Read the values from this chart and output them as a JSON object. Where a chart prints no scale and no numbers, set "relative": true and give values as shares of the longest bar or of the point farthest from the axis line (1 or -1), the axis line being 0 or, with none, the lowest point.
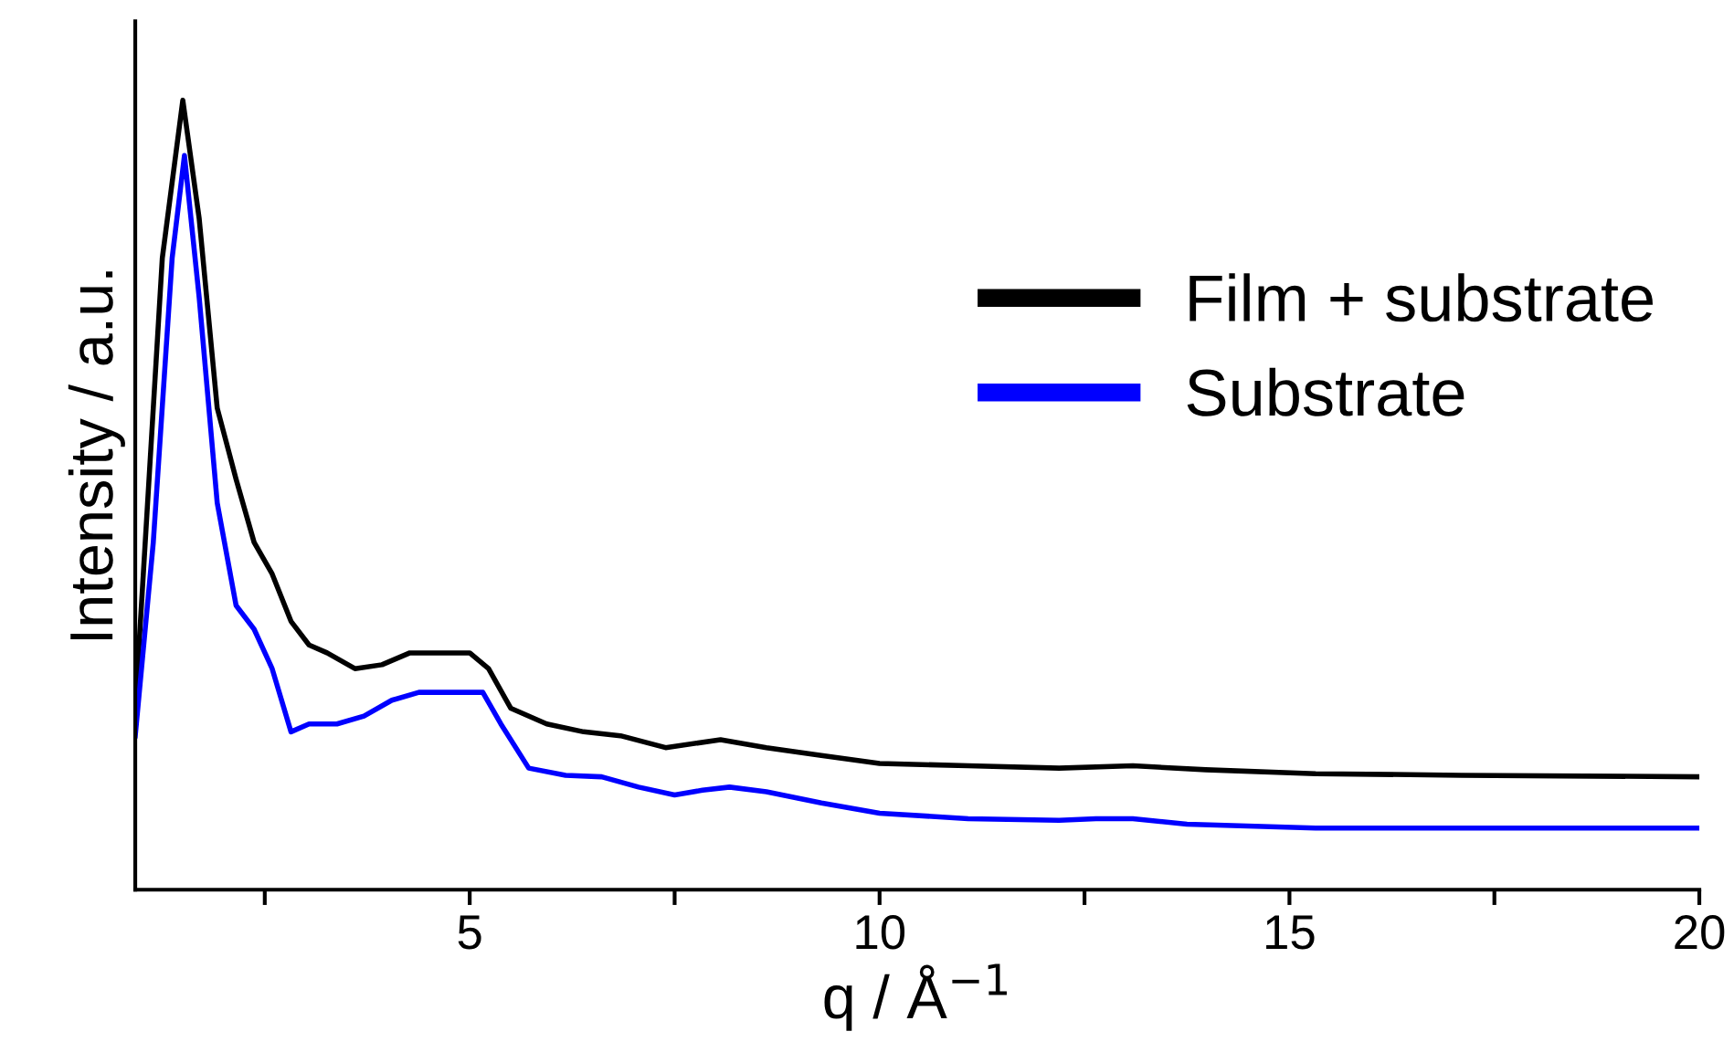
{
  "chart_data": {
    "type": "line",
    "relative": true,
    "xlabel": "q / Å$^{−1}$",
    "ylabel": "Intensity / a.u.",
    "xlim": [
      0.92,
      20
    ],
    "xticks": [
      {
        "value": 2.5,
        "label": null
      },
      5,
      {
        "value": 7.5,
        "label": null
      },
      10,
      {
        "value": 12.5,
        "label": null
      },
      15,
      {
        "value": 17.5,
        "label": null
      },
      20
    ],
    "legend": "right",
    "grid": false,
    "marker": "none",
    "line_style": "solid",
    "series": [
      {
        "name": "Film + substrate",
        "color": "#000000",
        "x": [
          0.92,
          1.25,
          1.5,
          1.7,
          1.92,
          2.15,
          2.37,
          2.59,
          2.82,
          3.04,
          3.26,
          3.6,
          3.93,
          4.27,
          4.6,
          5.0,
          5.23,
          5.5,
          5.94,
          6.39,
          6.84,
          7.39,
          8.06,
          8.62,
          9.29,
          10.0,
          11.08,
          12.19,
          13.09,
          13.98,
          15.32,
          17.1,
          20
        ],
        "values": [
          0.23,
          0.8,
          1.0,
          0.85,
          0.61,
          0.52,
          0.44,
          0.4,
          0.34,
          0.31,
          0.3,
          0.28,
          0.285,
          0.3,
          0.3,
          0.3,
          0.28,
          0.23,
          0.21,
          0.2,
          0.195,
          0.18,
          0.19,
          0.18,
          0.17,
          0.16,
          0.157,
          0.154,
          0.157,
          0.152,
          0.147,
          0.145,
          0.143
        ]
      },
      {
        "name": "Substrate",
        "color": "#0000ff",
        "x": [
          0.92,
          1.14,
          1.37,
          1.52,
          1.7,
          1.92,
          2.15,
          2.37,
          2.59,
          2.82,
          3.04,
          3.38,
          3.71,
          4.05,
          4.38,
          4.71,
          5.16,
          5.38,
          5.72,
          6.17,
          6.61,
          7.06,
          7.5,
          7.84,
          8.17,
          8.62,
          9.29,
          10.0,
          11.08,
          12.19,
          12.64,
          13.09,
          13.75,
          15.32,
          20
        ],
        "values": [
          0.195,
          0.44,
          0.8,
          0.93,
          0.75,
          0.49,
          0.36,
          0.33,
          0.28,
          0.2,
          0.21,
          0.21,
          0.22,
          0.24,
          0.25,
          0.25,
          0.25,
          0.21,
          0.154,
          0.145,
          0.143,
          0.13,
          0.12,
          0.126,
          0.13,
          0.124,
          0.11,
          0.097,
          0.09,
          0.088,
          0.09,
          0.09,
          0.083,
          0.078,
          0.078
        ]
      }
    ]
  }
}
